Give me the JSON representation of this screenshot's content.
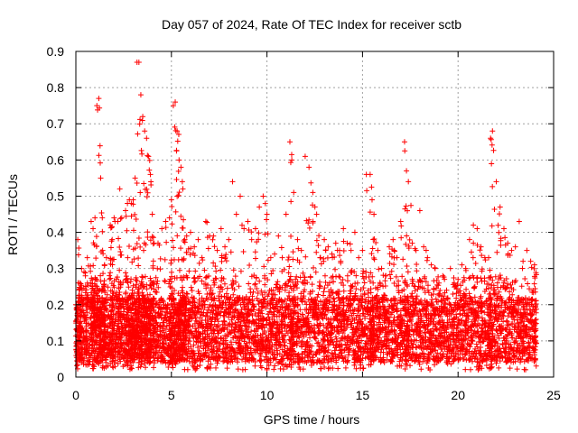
{
  "chart_data": {
    "type": "scatter",
    "title": "Day 057 of 2024, Rate Of TEC Index for receiver sctb",
    "xlabel": "GPS time / hours",
    "ylabel": "ROTI / TECUs",
    "xlim": [
      0,
      25
    ],
    "ylim": [
      0,
      0.9
    ],
    "xticks": [
      "0",
      "5",
      "10",
      "15",
      "20",
      "25"
    ],
    "yticks": [
      "0",
      "0.1",
      "0.2",
      "0.3",
      "0.4",
      "0.5",
      "0.6",
      "0.7",
      "0.8",
      "0.9"
    ],
    "grid": true,
    "marker": "plus",
    "marker_color": "#ff0000",
    "series": [
      {
        "x": [
          0.0,
          0.1,
          0.2,
          0.3,
          0.5,
          0.6,
          0.8,
          0.9,
          1.0,
          1.1,
          1.2,
          1.3,
          1.4,
          1.5,
          1.6,
          1.8,
          1.9,
          2.0,
          2.2,
          2.3,
          2.4,
          2.6,
          2.7,
          2.8,
          2.9,
          3.0,
          3.1,
          3.2,
          3.3,
          3.4,
          3.5,
          3.6,
          3.7,
          3.8,
          3.9,
          4.0,
          4.1,
          4.3,
          4.5,
          4.7,
          4.9,
          5.0,
          5.1,
          5.2,
          5.3,
          5.4,
          5.5,
          5.6,
          5.7,
          5.8,
          6.0,
          6.2,
          6.4,
          6.6,
          6.8,
          7.0,
          7.2,
          7.4,
          7.6,
          7.8,
          8.0,
          8.2,
          8.4,
          8.6,
          8.8,
          9.0,
          9.2,
          9.4,
          9.6,
          9.8,
          10.0,
          10.2,
          10.4,
          10.6,
          10.8,
          11.0,
          11.2,
          11.3,
          11.4,
          11.6,
          11.8,
          12.0,
          12.2,
          12.4,
          12.6,
          12.8,
          13.0,
          13.2,
          13.4,
          13.6,
          13.8,
          14.0,
          14.2,
          14.4,
          14.6,
          14.8,
          15.0,
          15.2,
          15.4,
          15.5,
          15.6,
          15.8,
          16.0,
          16.2,
          16.4,
          16.6,
          16.8,
          17.0,
          17.2,
          17.3,
          17.4,
          17.6,
          17.8,
          18.0,
          18.2,
          18.4,
          18.6,
          18.8,
          19.0,
          19.2,
          19.4,
          19.6,
          19.8,
          20.0,
          20.2,
          20.4,
          20.6,
          20.8,
          21.0,
          21.2,
          21.4,
          21.6,
          21.7,
          21.8,
          22.0,
          22.2,
          22.4,
          22.6,
          22.8,
          23.0,
          23.2,
          23.4,
          23.6,
          23.8,
          24.0
        ],
        "y_high": [
          0.2,
          0.38,
          0.26,
          0.3,
          0.28,
          0.33,
          0.43,
          0.41,
          0.44,
          0.75,
          0.77,
          0.55,
          0.35,
          0.31,
          0.33,
          0.42,
          0.38,
          0.44,
          0.43,
          0.52,
          0.44,
          0.46,
          0.48,
          0.49,
          0.48,
          0.49,
          0.55,
          0.87,
          0.87,
          0.78,
          0.72,
          0.68,
          0.66,
          0.61,
          0.56,
          0.45,
          0.37,
          0.37,
          0.41,
          0.43,
          0.44,
          0.49,
          0.75,
          0.76,
          0.68,
          0.6,
          0.58,
          0.52,
          0.38,
          0.39,
          0.4,
          0.36,
          0.38,
          0.33,
          0.43,
          0.39,
          0.39,
          0.35,
          0.41,
          0.36,
          0.38,
          0.54,
          0.45,
          0.5,
          0.41,
          0.43,
          0.38,
          0.41,
          0.47,
          0.5,
          0.45,
          0.33,
          0.34,
          0.39,
          0.33,
          0.45,
          0.65,
          0.6,
          0.51,
          0.38,
          0.35,
          0.61,
          0.58,
          0.51,
          0.45,
          0.33,
          0.38,
          0.36,
          0.34,
          0.37,
          0.35,
          0.41,
          0.37,
          0.35,
          0.4,
          0.33,
          0.35,
          0.56,
          0.56,
          0.49,
          0.45,
          0.35,
          0.3,
          0.28,
          0.36,
          0.38,
          0.33,
          0.43,
          0.65,
          0.57,
          0.54,
          0.37,
          0.35,
          0.46,
          0.36,
          0.33,
          0.31,
          0.3,
          0.26,
          0.28,
          0.24,
          0.3,
          0.26,
          0.27,
          0.31,
          0.3,
          0.38,
          0.42,
          0.41,
          0.36,
          0.33,
          0.33,
          0.66,
          0.68,
          0.54,
          0.47,
          0.41,
          0.37,
          0.35,
          0.36,
          0.43,
          0.32,
          0.35,
          0.32,
          0.31
        ]
      }
    ]
  }
}
